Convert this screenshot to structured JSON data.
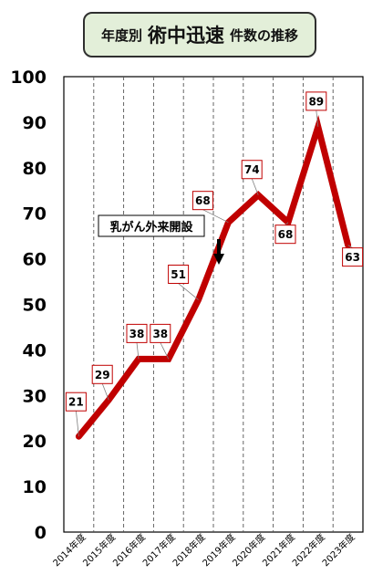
{
  "title": {
    "prefix": "年度別",
    "main": "術中迅速",
    "suffix": "件数の推移"
  },
  "chart_data": {
    "type": "line",
    "categories": [
      "2014年度",
      "2015年度",
      "2016年度",
      "2017年度",
      "2018年度",
      "2019年度",
      "2020年度",
      "2021年度",
      "2022年度",
      "2023年度"
    ],
    "values": [
      21,
      29,
      38,
      38,
      51,
      68,
      74,
      68,
      89,
      63
    ],
    "data_labels": [
      "21",
      "29",
      "38",
      "38",
      "51",
      "68",
      "74",
      "68",
      "89",
      "63"
    ],
    "ylim": [
      0,
      100
    ],
    "yticks": [
      0,
      10,
      20,
      30,
      40,
      50,
      60,
      70,
      80,
      90,
      100
    ],
    "ytick_labels": [
      "0",
      "10",
      "20",
      "30",
      "40",
      "50",
      "60",
      "70",
      "80",
      "90",
      "100"
    ],
    "line_color": "#c00000",
    "grid": "vertical dashed",
    "annotation": {
      "text": "乳がん外来開設",
      "at_category": "2018年度"
    }
  }
}
